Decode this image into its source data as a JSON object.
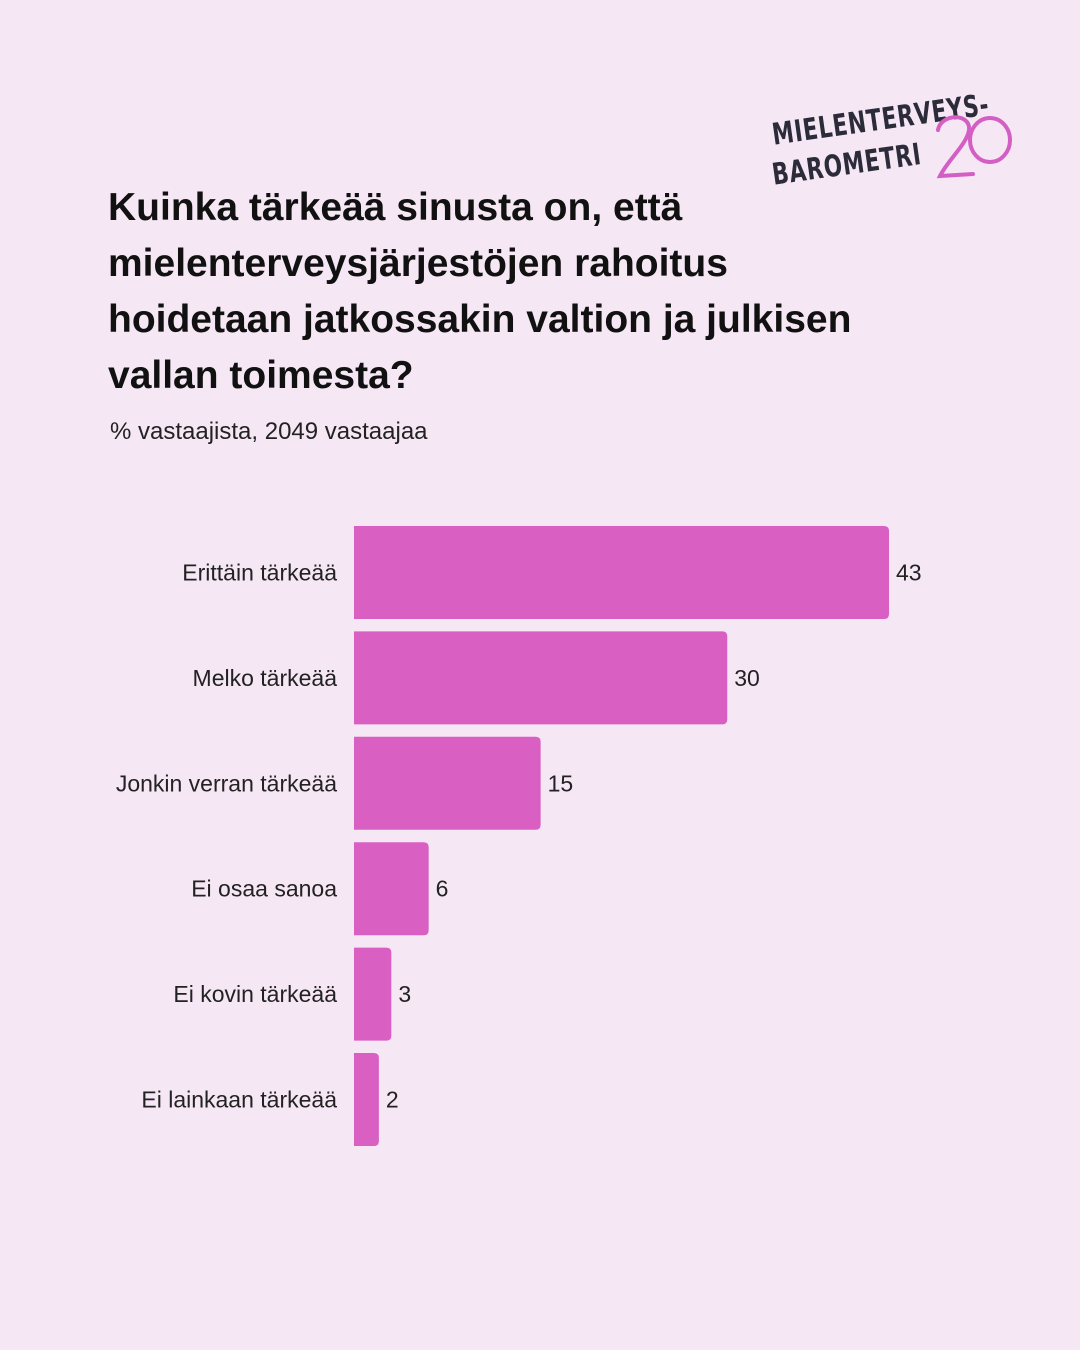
{
  "logo": {
    "line1": "MIELENTERVEYS-",
    "line2": "BAROMETRI",
    "number": "20"
  },
  "title": "Kuinka tärkeää sinusta on, että mielenterveysjärjestöjen rahoitus hoidetaan jatkossakin valtion ja julkisen vallan toimesta?",
  "subtitle": "% vastaajista, 2049 vastaajaa",
  "colors": {
    "background": "#f6e7f5",
    "bar": "#d95fc3",
    "logo_accent": "#d45fc4"
  },
  "chart_data": {
    "type": "bar",
    "orientation": "horizontal",
    "categories": [
      "Erittäin tärkeää",
      "Melko tärkeää",
      "Jonkin verran tärkeää",
      "Ei osaa sanoa",
      "Ei kovin tärkeää",
      "Ei lainkaan tärkeää"
    ],
    "values": [
      43,
      30,
      15,
      6,
      3,
      2
    ],
    "title": "Kuinka tärkeää sinusta on, että mielenterveysjärjestöjen rahoitus hoidetaan jatkossakin valtion ja julkisen vallan toimesta?",
    "subtitle": "% vastaajista, 2049 vastaajaa",
    "xlim": [
      0,
      43
    ],
    "grid": false,
    "data_labels": true
  }
}
